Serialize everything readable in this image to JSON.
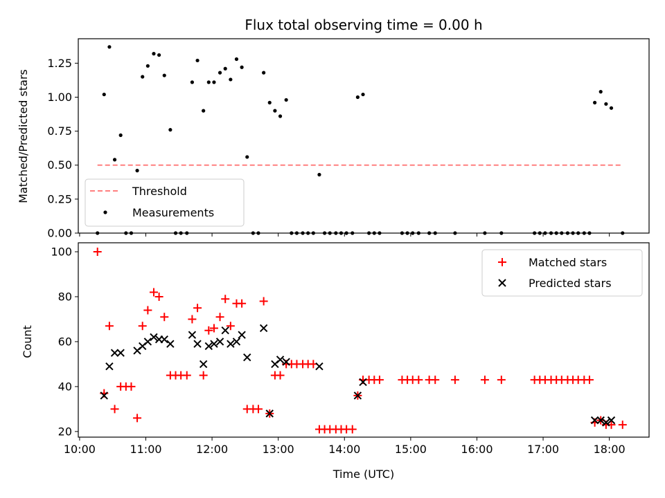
{
  "chart_data": [
    {
      "type": "scatter",
      "title": "Flux total observing time = 0.00 h",
      "ylabel": "Matched/Predicted stars",
      "xlabel": "",
      "x_unit": "hours (UTC)",
      "xlim": [
        9.98,
        18.6
      ],
      "ylim": [
        0,
        1.43
      ],
      "xticks": [
        10,
        11,
        12,
        13,
        14,
        15,
        16,
        17,
        18
      ],
      "xtick_labels": [],
      "yticks": [
        0.0,
        0.25,
        0.5,
        0.75,
        1.0,
        1.25
      ],
      "ytick_labels": [
        "0.00",
        "0.25",
        "0.50",
        "0.75",
        "1.00",
        "1.25"
      ],
      "threshold": {
        "name": "Threshold",
        "value": 0.5,
        "x_range": [
          10.27,
          18.2
        ],
        "color": "#ff7f7f",
        "style": "dashed"
      },
      "legend": {
        "position": "lower-left",
        "entries": [
          "Threshold",
          "Measurements"
        ]
      },
      "series": [
        {
          "name": "Measurements",
          "color": "#000000",
          "marker": "dot",
          "points": [
            [
              10.27,
              0
            ],
            [
              10.37,
              1.02
            ],
            [
              10.45,
              1.37
            ],
            [
              10.53,
              0.54
            ],
            [
              10.62,
              0.72
            ],
            [
              10.7,
              0
            ],
            [
              10.78,
              0
            ],
            [
              10.87,
              0.46
            ],
            [
              10.95,
              1.15
            ],
            [
              11.03,
              1.23
            ],
            [
              11.12,
              1.32
            ],
            [
              11.2,
              1.31
            ],
            [
              11.28,
              1.16
            ],
            [
              11.37,
              0.76
            ],
            [
              11.45,
              0
            ],
            [
              11.53,
              0
            ],
            [
              11.62,
              0
            ],
            [
              11.7,
              1.11
            ],
            [
              11.78,
              1.27
            ],
            [
              11.87,
              0.9
            ],
            [
              11.95,
              1.11
            ],
            [
              12.03,
              1.11
            ],
            [
              12.12,
              1.18
            ],
            [
              12.2,
              1.21
            ],
            [
              12.28,
              1.13
            ],
            [
              12.37,
              1.28
            ],
            [
              12.45,
              1.22
            ],
            [
              12.53,
              0.56
            ],
            [
              12.62,
              0
            ],
            [
              12.7,
              0
            ],
            [
              12.78,
              1.18
            ],
            [
              12.87,
              0.96
            ],
            [
              12.95,
              0.9
            ],
            [
              13.03,
              0.86
            ],
            [
              13.12,
              0.98
            ],
            [
              13.2,
              0
            ],
            [
              13.28,
              0
            ],
            [
              13.37,
              0
            ],
            [
              13.45,
              0
            ],
            [
              13.53,
              0
            ],
            [
              13.62,
              0.43
            ],
            [
              13.7,
              0
            ],
            [
              13.78,
              0
            ],
            [
              13.87,
              0
            ],
            [
              13.95,
              0
            ],
            [
              14.03,
              0
            ],
            [
              14.12,
              0
            ],
            [
              14.2,
              1.0
            ],
            [
              14.28,
              1.02
            ],
            [
              14.37,
              0
            ],
            [
              14.45,
              0
            ],
            [
              14.53,
              0
            ],
            [
              14.87,
              0
            ],
            [
              14.95,
              0
            ],
            [
              15.03,
              0
            ],
            [
              15.12,
              0
            ],
            [
              15.28,
              0
            ],
            [
              15.37,
              0
            ],
            [
              15.67,
              0
            ],
            [
              16.12,
              0
            ],
            [
              16.37,
              0
            ],
            [
              16.87,
              0
            ],
            [
              16.95,
              0
            ],
            [
              17.03,
              0
            ],
            [
              17.12,
              0
            ],
            [
              17.2,
              0
            ],
            [
              17.28,
              0
            ],
            [
              17.37,
              0
            ],
            [
              17.45,
              0
            ],
            [
              17.53,
              0
            ],
            [
              17.62,
              0
            ],
            [
              17.7,
              0
            ],
            [
              17.78,
              0.96
            ],
            [
              17.87,
              1.04
            ],
            [
              17.95,
              0.95
            ],
            [
              18.03,
              0.92
            ],
            [
              18.2,
              0
            ]
          ]
        }
      ]
    },
    {
      "type": "scatter",
      "title": "",
      "ylabel": "Count",
      "xlabel": "Time (UTC)",
      "x_unit": "hours (UTC)",
      "xlim": [
        9.98,
        18.6
      ],
      "ylim": [
        17.5,
        104
      ],
      "xticks": [
        10,
        11,
        12,
        13,
        14,
        15,
        16,
        17,
        18
      ],
      "xtick_labels": [
        "10:00",
        "11:00",
        "12:00",
        "13:00",
        "14:00",
        "15:00",
        "16:00",
        "17:00",
        "18:00"
      ],
      "yticks": [
        20,
        40,
        60,
        80,
        100
      ],
      "ytick_labels": [
        "20",
        "40",
        "60",
        "80",
        "100"
      ],
      "legend": {
        "position": "top-right",
        "entries": [
          "Matched stars",
          "Predicted stars"
        ]
      },
      "series": [
        {
          "name": "Matched stars",
          "color": "#ff0000",
          "marker": "plus",
          "points": [
            [
              10.27,
              100
            ],
            [
              10.37,
              37
            ],
            [
              10.45,
              67
            ],
            [
              10.53,
              30
            ],
            [
              10.62,
              40
            ],
            [
              10.7,
              40
            ],
            [
              10.78,
              40
            ],
            [
              10.87,
              26
            ],
            [
              10.95,
              67
            ],
            [
              11.03,
              74
            ],
            [
              11.12,
              82
            ],
            [
              11.2,
              80
            ],
            [
              11.28,
              71
            ],
            [
              11.37,
              45
            ],
            [
              11.45,
              45
            ],
            [
              11.53,
              45
            ],
            [
              11.62,
              45
            ],
            [
              11.7,
              70
            ],
            [
              11.78,
              75
            ],
            [
              11.87,
              45
            ],
            [
              11.95,
              65
            ],
            [
              12.03,
              66
            ],
            [
              12.12,
              71
            ],
            [
              12.2,
              79
            ],
            [
              12.28,
              67
            ],
            [
              12.37,
              77
            ],
            [
              12.45,
              77
            ],
            [
              12.53,
              30
            ],
            [
              12.62,
              30
            ],
            [
              12.7,
              30
            ],
            [
              12.78,
              78
            ],
            [
              12.87,
              28
            ],
            [
              12.95,
              45
            ],
            [
              13.03,
              45
            ],
            [
              13.12,
              50
            ],
            [
              13.2,
              50
            ],
            [
              13.28,
              50
            ],
            [
              13.37,
              50
            ],
            [
              13.45,
              50
            ],
            [
              13.53,
              50
            ],
            [
              13.62,
              21
            ],
            [
              13.7,
              21
            ],
            [
              13.78,
              21
            ],
            [
              13.87,
              21
            ],
            [
              13.95,
              21
            ],
            [
              14.03,
              21
            ],
            [
              14.12,
              21
            ],
            [
              14.2,
              36
            ],
            [
              14.28,
              43
            ],
            [
              14.37,
              43
            ],
            [
              14.45,
              43
            ],
            [
              14.53,
              43
            ],
            [
              14.87,
              43
            ],
            [
              14.95,
              43
            ],
            [
              15.03,
              43
            ],
            [
              15.12,
              43
            ],
            [
              15.28,
              43
            ],
            [
              15.37,
              43
            ],
            [
              15.67,
              43
            ],
            [
              16.12,
              43
            ],
            [
              16.37,
              43
            ],
            [
              16.87,
              43
            ],
            [
              16.95,
              43
            ],
            [
              17.03,
              43
            ],
            [
              17.12,
              43
            ],
            [
              17.2,
              43
            ],
            [
              17.28,
              43
            ],
            [
              17.37,
              43
            ],
            [
              17.45,
              43
            ],
            [
              17.53,
              43
            ],
            [
              17.62,
              43
            ],
            [
              17.7,
              43
            ],
            [
              17.78,
              24
            ],
            [
              17.87,
              25
            ],
            [
              17.95,
              23
            ],
            [
              18.03,
              23
            ],
            [
              18.2,
              23
            ]
          ]
        },
        {
          "name": "Predicted stars",
          "color": "#000000",
          "marker": "x",
          "points": [
            [
              10.37,
              36
            ],
            [
              10.45,
              49
            ],
            [
              10.53,
              55
            ],
            [
              10.62,
              55
            ],
            [
              10.87,
              56
            ],
            [
              10.95,
              58
            ],
            [
              11.03,
              60
            ],
            [
              11.12,
              62
            ],
            [
              11.2,
              61
            ],
            [
              11.28,
              61
            ],
            [
              11.37,
              59
            ],
            [
              11.7,
              63
            ],
            [
              11.78,
              59
            ],
            [
              11.87,
              50
            ],
            [
              11.95,
              58
            ],
            [
              12.03,
              59
            ],
            [
              12.12,
              60
            ],
            [
              12.2,
              65
            ],
            [
              12.28,
              59
            ],
            [
              12.37,
              60
            ],
            [
              12.45,
              63
            ],
            [
              12.53,
              53
            ],
            [
              12.78,
              66
            ],
            [
              12.87,
              28
            ],
            [
              12.95,
              50
            ],
            [
              13.03,
              52
            ],
            [
              13.12,
              51
            ],
            [
              13.62,
              49
            ],
            [
              14.2,
              36
            ],
            [
              14.28,
              42
            ],
            [
              17.78,
              25
            ],
            [
              17.87,
              25
            ],
            [
              17.95,
              24
            ],
            [
              18.03,
              25
            ]
          ]
        }
      ]
    }
  ]
}
